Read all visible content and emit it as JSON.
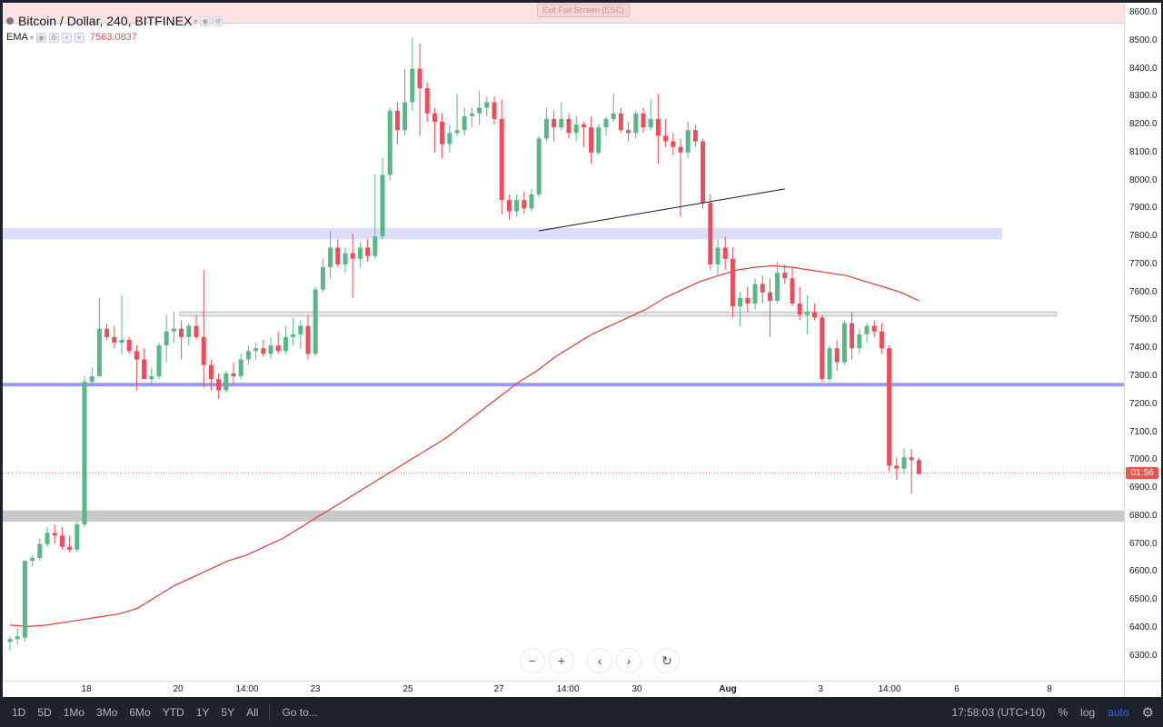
{
  "symbol": {
    "title": "Bitcoin / Dollar, 240, BITFINEX"
  },
  "indicator": {
    "name": "EMA",
    "value": "7563.0837"
  },
  "fullscreen": {
    "exit_label": "Exit Full Screen (ESC)"
  },
  "colors": {
    "bull": "#26a69a",
    "bull_body": "#53b987",
    "bear": "#eb4d5c",
    "ema": "#e53935",
    "zone_blue": "#dcdcfb",
    "line_blue": "#9999f0",
    "zone_gray": "#c8c8c8"
  },
  "price_axis": {
    "ticks": [
      "8600.0",
      "8500.0",
      "8400.0",
      "8300.0",
      "8200.0",
      "8100.0",
      "8000.0",
      "7900.0",
      "7800.0",
      "7700.0",
      "7600.0",
      "7500.0",
      "7400.0",
      "7300.0",
      "7200.0",
      "7100.0",
      "7000.0",
      "6900.0",
      "6800.0",
      "6700.0",
      "6600.0",
      "6500.0",
      "6400.0",
      "6300.0"
    ],
    "last_price_label": "01:56"
  },
  "time_axis": {
    "labels": [
      {
        "text": "18",
        "bold": false
      },
      {
        "text": "20",
        "bold": false
      },
      {
        "text": "14:00",
        "bold": false
      },
      {
        "text": "23",
        "bold": false
      },
      {
        "text": "25",
        "bold": false
      },
      {
        "text": "27",
        "bold": false
      },
      {
        "text": "14:00",
        "bold": false
      },
      {
        "text": "30",
        "bold": false
      },
      {
        "text": "Aug",
        "bold": true
      },
      {
        "text": "3",
        "bold": false
      },
      {
        "text": "14:00",
        "bold": false
      },
      {
        "text": "6",
        "bold": false
      },
      {
        "text": "8",
        "bold": false
      }
    ]
  },
  "nav": {
    "zoom_out": "−",
    "zoom_in": "+",
    "scroll_left": "‹",
    "scroll_right": "›",
    "reset": "↻"
  },
  "toolbar": {
    "ranges": [
      "1D",
      "5D",
      "1Mo",
      "3Mo",
      "6Mo",
      "YTD",
      "1Y",
      "5Y",
      "All"
    ],
    "goto": "Go to...",
    "clock": "17:58:03 (UTC+10)",
    "percent": "%",
    "log": "log",
    "auto": "auto"
  },
  "chart_data": {
    "type": "candlestick",
    "ylim": [
      6200,
      8640
    ],
    "last_price": 6955,
    "candles": [
      {
        "o": 6350,
        "h": 6370,
        "l": 6320,
        "c": 6360
      },
      {
        "o": 6360,
        "h": 6400,
        "l": 6340,
        "c": 6370
      },
      {
        "o": 6365,
        "h": 6640,
        "l": 6350,
        "c": 6640
      },
      {
        "o": 6640,
        "h": 6660,
        "l": 6620,
        "c": 6650
      },
      {
        "o": 6650,
        "h": 6720,
        "l": 6640,
        "c": 6700
      },
      {
        "o": 6700,
        "h": 6760,
        "l": 6690,
        "c": 6740
      },
      {
        "o": 6740,
        "h": 6770,
        "l": 6700,
        "c": 6730
      },
      {
        "o": 6730,
        "h": 6760,
        "l": 6680,
        "c": 6690
      },
      {
        "o": 6690,
        "h": 6730,
        "l": 6670,
        "c": 6680
      },
      {
        "o": 6680,
        "h": 6780,
        "l": 6670,
        "c": 6770
      },
      {
        "o": 6770,
        "h": 7300,
        "l": 6760,
        "c": 7280
      },
      {
        "o": 7280,
        "h": 7330,
        "l": 7270,
        "c": 7300
      },
      {
        "o": 7300,
        "h": 7580,
        "l": 7300,
        "c": 7470
      },
      {
        "o": 7470,
        "h": 7490,
        "l": 7430,
        "c": 7440
      },
      {
        "o": 7440,
        "h": 7480,
        "l": 7400,
        "c": 7420
      },
      {
        "o": 7420,
        "h": 7590,
        "l": 7380,
        "c": 7430
      },
      {
        "o": 7430,
        "h": 7440,
        "l": 7380,
        "c": 7390
      },
      {
        "o": 7390,
        "h": 7410,
        "l": 7250,
        "c": 7360
      },
      {
        "o": 7360,
        "h": 7400,
        "l": 7300,
        "c": 7290
      },
      {
        "o": 7290,
        "h": 7330,
        "l": 7270,
        "c": 7300
      },
      {
        "o": 7300,
        "h": 7420,
        "l": 7290,
        "c": 7410
      },
      {
        "o": 7410,
        "h": 7520,
        "l": 7350,
        "c": 7460
      },
      {
        "o": 7460,
        "h": 7530,
        "l": 7420,
        "c": 7470
      },
      {
        "o": 7470,
        "h": 7500,
        "l": 7360,
        "c": 7440
      },
      {
        "o": 7440,
        "h": 7490,
        "l": 7410,
        "c": 7480
      },
      {
        "o": 7480,
        "h": 7520,
        "l": 7430,
        "c": 7440
      },
      {
        "o": 7440,
        "h": 7680,
        "l": 7260,
        "c": 7340
      },
      {
        "o": 7340,
        "h": 7360,
        "l": 7250,
        "c": 7290
      },
      {
        "o": 7290,
        "h": 7310,
        "l": 7220,
        "c": 7250
      },
      {
        "o": 7250,
        "h": 7320,
        "l": 7240,
        "c": 7310
      },
      {
        "o": 7310,
        "h": 7350,
        "l": 7270,
        "c": 7300
      },
      {
        "o": 7300,
        "h": 7380,
        "l": 7290,
        "c": 7360
      },
      {
        "o": 7360,
        "h": 7410,
        "l": 7340,
        "c": 7390
      },
      {
        "o": 7390,
        "h": 7420,
        "l": 7360,
        "c": 7400
      },
      {
        "o": 7400,
        "h": 7430,
        "l": 7370,
        "c": 7380
      },
      {
        "o": 7380,
        "h": 7440,
        "l": 7360,
        "c": 7410
      },
      {
        "o": 7410,
        "h": 7460,
        "l": 7380,
        "c": 7390
      },
      {
        "o": 7390,
        "h": 7480,
        "l": 7380,
        "c": 7440
      },
      {
        "o": 7440,
        "h": 7510,
        "l": 7410,
        "c": 7450
      },
      {
        "o": 7450,
        "h": 7500,
        "l": 7400,
        "c": 7480
      },
      {
        "o": 7480,
        "h": 7520,
        "l": 7360,
        "c": 7380
      },
      {
        "o": 7380,
        "h": 7620,
        "l": 7370,
        "c": 7610
      },
      {
        "o": 7610,
        "h": 7720,
        "l": 7600,
        "c": 7690
      },
      {
        "o": 7690,
        "h": 7820,
        "l": 7650,
        "c": 7760
      },
      {
        "o": 7760,
        "h": 7790,
        "l": 7690,
        "c": 7700
      },
      {
        "o": 7700,
        "h": 7760,
        "l": 7670,
        "c": 7740
      },
      {
        "o": 7740,
        "h": 7810,
        "l": 7580,
        "c": 7720
      },
      {
        "o": 7720,
        "h": 7780,
        "l": 7690,
        "c": 7760
      },
      {
        "o": 7760,
        "h": 7790,
        "l": 7710,
        "c": 7730
      },
      {
        "o": 7730,
        "h": 8020,
        "l": 7720,
        "c": 7800
      },
      {
        "o": 7800,
        "h": 8080,
        "l": 7790,
        "c": 8020
      },
      {
        "o": 8020,
        "h": 8260,
        "l": 8000,
        "c": 8250
      },
      {
        "o": 8250,
        "h": 8280,
        "l": 8130,
        "c": 8180
      },
      {
        "o": 8180,
        "h": 8400,
        "l": 8160,
        "c": 8280
      },
      {
        "o": 8280,
        "h": 8510,
        "l": 8250,
        "c": 8400
      },
      {
        "o": 8400,
        "h": 8490,
        "l": 8160,
        "c": 8330
      },
      {
        "o": 8330,
        "h": 8350,
        "l": 8210,
        "c": 8240
      },
      {
        "o": 8240,
        "h": 8260,
        "l": 8100,
        "c": 8210
      },
      {
        "o": 8210,
        "h": 8240,
        "l": 8080,
        "c": 8130
      },
      {
        "o": 8130,
        "h": 8200,
        "l": 8100,
        "c": 8170
      },
      {
        "o": 8170,
        "h": 8310,
        "l": 8160,
        "c": 8180
      },
      {
        "o": 8180,
        "h": 8260,
        "l": 8160,
        "c": 8230
      },
      {
        "o": 8230,
        "h": 8260,
        "l": 8190,
        "c": 8240
      },
      {
        "o": 8240,
        "h": 8320,
        "l": 8200,
        "c": 8260
      },
      {
        "o": 8260,
        "h": 8300,
        "l": 8230,
        "c": 8280
      },
      {
        "o": 8280,
        "h": 8300,
        "l": 8200,
        "c": 8220
      },
      {
        "o": 8220,
        "h": 8290,
        "l": 7880,
        "c": 7930
      },
      {
        "o": 7930,
        "h": 7950,
        "l": 7860,
        "c": 7890
      },
      {
        "o": 7890,
        "h": 7950,
        "l": 7870,
        "c": 7930
      },
      {
        "o": 7930,
        "h": 7960,
        "l": 7880,
        "c": 7900
      },
      {
        "o": 7900,
        "h": 7970,
        "l": 7890,
        "c": 7950
      },
      {
        "o": 7950,
        "h": 8160,
        "l": 7940,
        "c": 8150
      },
      {
        "o": 8150,
        "h": 8260,
        "l": 8140,
        "c": 8220
      },
      {
        "o": 8220,
        "h": 8250,
        "l": 8140,
        "c": 8190
      },
      {
        "o": 8190,
        "h": 8280,
        "l": 8180,
        "c": 8220
      },
      {
        "o": 8220,
        "h": 8240,
        "l": 8150,
        "c": 8170
      },
      {
        "o": 8170,
        "h": 8230,
        "l": 8140,
        "c": 8200
      },
      {
        "o": 8200,
        "h": 8210,
        "l": 8120,
        "c": 8190
      },
      {
        "o": 8190,
        "h": 8230,
        "l": 8060,
        "c": 8100
      },
      {
        "o": 8100,
        "h": 8200,
        "l": 8090,
        "c": 8190
      },
      {
        "o": 8190,
        "h": 8230,
        "l": 8160,
        "c": 8220
      },
      {
        "o": 8220,
        "h": 8310,
        "l": 8210,
        "c": 8240
      },
      {
        "o": 8240,
        "h": 8260,
        "l": 8170,
        "c": 8180
      },
      {
        "o": 8180,
        "h": 8210,
        "l": 8140,
        "c": 8170
      },
      {
        "o": 8170,
        "h": 8250,
        "l": 8150,
        "c": 8240
      },
      {
        "o": 8240,
        "h": 8260,
        "l": 8170,
        "c": 8190
      },
      {
        "o": 8190,
        "h": 8290,
        "l": 8180,
        "c": 8220
      },
      {
        "o": 8220,
        "h": 8310,
        "l": 8060,
        "c": 8160
      },
      {
        "o": 8160,
        "h": 8220,
        "l": 8120,
        "c": 8140
      },
      {
        "o": 8140,
        "h": 8170,
        "l": 8090,
        "c": 8120
      },
      {
        "o": 8120,
        "h": 8150,
        "l": 7870,
        "c": 8100
      },
      {
        "o": 8100,
        "h": 8210,
        "l": 8080,
        "c": 8180
      },
      {
        "o": 8180,
        "h": 8200,
        "l": 8120,
        "c": 8140
      },
      {
        "o": 8140,
        "h": 8150,
        "l": 7900,
        "c": 7920
      },
      {
        "o": 7920,
        "h": 7950,
        "l": 7680,
        "c": 7700
      },
      {
        "o": 7700,
        "h": 7790,
        "l": 7660,
        "c": 7760
      },
      {
        "o": 7760,
        "h": 7800,
        "l": 7680,
        "c": 7720
      },
      {
        "o": 7720,
        "h": 7760,
        "l": 7510,
        "c": 7550
      },
      {
        "o": 7550,
        "h": 7600,
        "l": 7480,
        "c": 7580
      },
      {
        "o": 7580,
        "h": 7620,
        "l": 7530,
        "c": 7560
      },
      {
        "o": 7560,
        "h": 7650,
        "l": 7540,
        "c": 7630
      },
      {
        "o": 7630,
        "h": 7660,
        "l": 7560,
        "c": 7600
      },
      {
        "o": 7600,
        "h": 7650,
        "l": 7440,
        "c": 7570
      },
      {
        "o": 7570,
        "h": 7710,
        "l": 7560,
        "c": 7670
      },
      {
        "o": 7670,
        "h": 7700,
        "l": 7630,
        "c": 7650
      },
      {
        "o": 7650,
        "h": 7690,
        "l": 7550,
        "c": 7560
      },
      {
        "o": 7560,
        "h": 7620,
        "l": 7500,
        "c": 7520
      },
      {
        "o": 7520,
        "h": 7590,
        "l": 7450,
        "c": 7530
      },
      {
        "o": 7530,
        "h": 7560,
        "l": 7500,
        "c": 7510
      },
      {
        "o": 7510,
        "h": 7520,
        "l": 7280,
        "c": 7290
      },
      {
        "o": 7290,
        "h": 7410,
        "l": 7280,
        "c": 7400
      },
      {
        "o": 7400,
        "h": 7430,
        "l": 7320,
        "c": 7350
      },
      {
        "o": 7350,
        "h": 7500,
        "l": 7340,
        "c": 7490
      },
      {
        "o": 7490,
        "h": 7530,
        "l": 7360,
        "c": 7400
      },
      {
        "o": 7400,
        "h": 7470,
        "l": 7380,
        "c": 7450
      },
      {
        "o": 7450,
        "h": 7490,
        "l": 7420,
        "c": 7480
      },
      {
        "o": 7480,
        "h": 7500,
        "l": 7440,
        "c": 7460
      },
      {
        "o": 7460,
        "h": 7490,
        "l": 7380,
        "c": 7400
      },
      {
        "o": 7400,
        "h": 7410,
        "l": 6960,
        "c": 6980
      },
      {
        "o": 6980,
        "h": 7010,
        "l": 6930,
        "c": 6970
      },
      {
        "o": 6970,
        "h": 7040,
        "l": 6950,
        "c": 7010
      },
      {
        "o": 7010,
        "h": 7040,
        "l": 6880,
        "c": 7000
      },
      {
        "o": 7000,
        "h": 7010,
        "l": 6950,
        "c": 6950
      }
    ],
    "ema": [
      6410,
      6405,
      6410,
      6420,
      6430,
      6440,
      6450,
      6470,
      6510,
      6550,
      6580,
      6610,
      6640,
      6660,
      6690,
      6720,
      6760,
      6800,
      6840,
      6880,
      6920,
      6960,
      7000,
      7040,
      7080,
      7130,
      7180,
      7230,
      7280,
      7320,
      7370,
      7410,
      7450,
      7480,
      7510,
      7540,
      7580,
      7610,
      7640,
      7660,
      7680,
      7690,
      7695,
      7690,
      7680,
      7670,
      7660,
      7640,
      7620,
      7600,
      7570
    ],
    "ema_start_x": "16 Jul",
    "zones": [
      {
        "kind": "band",
        "low": 7790,
        "high": 7830,
        "color": "#dcdcfb"
      },
      {
        "kind": "band",
        "low": 7515,
        "high": 7530,
        "color": "#e6e6e6"
      },
      {
        "kind": "line",
        "price": 7270,
        "color": "#9999f0"
      },
      {
        "kind": "band",
        "low": 6780,
        "high": 6820,
        "color": "#c8c8c8"
      }
    ]
  }
}
